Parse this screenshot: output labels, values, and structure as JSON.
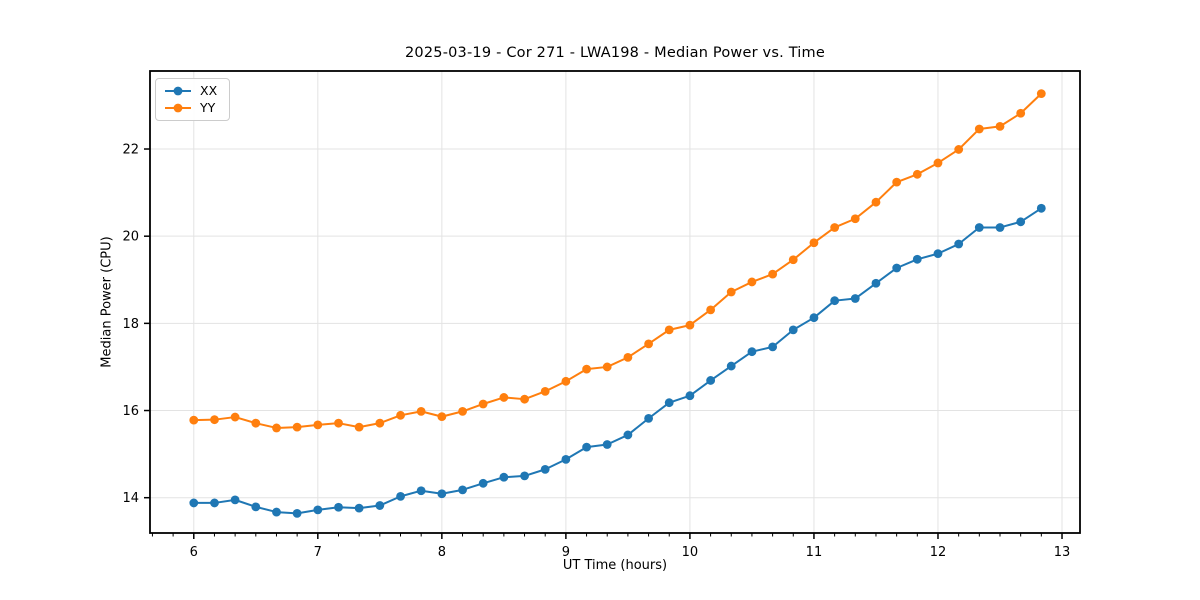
{
  "figure": {
    "title": "2025-03-19 - Cor 271 - LWA198 - Median Power vs. Time",
    "xlabel": "UT Time (hours)",
    "ylabel": "Median Power (CPU)"
  },
  "legend": {
    "items": [
      {
        "label": "XX",
        "color": "#1f77b4"
      },
      {
        "label": "YY",
        "color": "#ff7f0e"
      }
    ],
    "position": "upper left"
  },
  "chart_data": {
    "type": "line",
    "title": "2025-03-19 - Cor 271 - LWA198 - Median Power vs. Time",
    "xlabel": "UT Time (hours)",
    "ylabel": "Median Power (CPU)",
    "x": [
      6.0,
      6.167,
      6.333,
      6.5,
      6.667,
      6.833,
      7.0,
      7.167,
      7.333,
      7.5,
      7.667,
      7.833,
      8.0,
      8.167,
      8.333,
      8.5,
      8.667,
      8.833,
      9.0,
      9.167,
      9.333,
      9.5,
      9.667,
      9.833,
      10.0,
      10.167,
      10.333,
      10.5,
      10.667,
      10.833,
      11.0,
      11.167,
      11.333,
      11.5,
      11.667,
      11.833,
      12.0,
      12.167,
      12.333,
      12.5,
      12.667,
      12.833
    ],
    "series": [
      {
        "name": "XX",
        "color": "#1f77b4",
        "marker": "circle",
        "values": [
          13.88,
          13.88,
          13.95,
          13.79,
          13.67,
          13.64,
          13.72,
          13.78,
          13.76,
          13.82,
          14.03,
          14.16,
          14.09,
          14.18,
          14.33,
          14.47,
          14.5,
          14.65,
          14.88,
          15.16,
          15.22,
          15.44,
          15.82,
          16.18,
          16.34,
          16.69,
          17.02,
          17.35,
          17.46,
          17.85,
          18.13,
          18.52,
          18.57,
          18.92,
          19.27,
          19.47,
          19.6,
          19.82,
          20.2,
          20.2,
          20.33,
          20.64
        ]
      },
      {
        "name": "YY",
        "color": "#ff7f0e",
        "marker": "circle",
        "values": [
          15.78,
          15.79,
          15.85,
          15.71,
          15.6,
          15.62,
          15.67,
          15.71,
          15.62,
          15.71,
          15.89,
          15.98,
          15.86,
          15.98,
          16.15,
          16.3,
          16.26,
          16.44,
          16.67,
          16.95,
          17.0,
          17.22,
          17.53,
          17.85,
          17.96,
          18.31,
          18.72,
          18.95,
          19.13,
          19.46,
          19.85,
          20.2,
          20.4,
          20.78,
          21.24,
          21.42,
          21.68,
          21.99,
          22.46,
          22.52,
          22.82,
          23.27
        ]
      }
    ],
    "xlim": [
      5.647,
      13.145
    ],
    "ylim": [
      13.19,
      23.79
    ],
    "xticks": [
      6,
      7,
      8,
      9,
      10,
      11,
      12,
      13
    ],
    "yticks": [
      14,
      16,
      18,
      20,
      22
    ],
    "x_minor_step": 0.16667,
    "grid": true,
    "legend_position": "upper left"
  },
  "colors": {
    "background": "#ffffff",
    "grid": "#e3e3e3",
    "axis": "#000000",
    "text": "#000000"
  }
}
